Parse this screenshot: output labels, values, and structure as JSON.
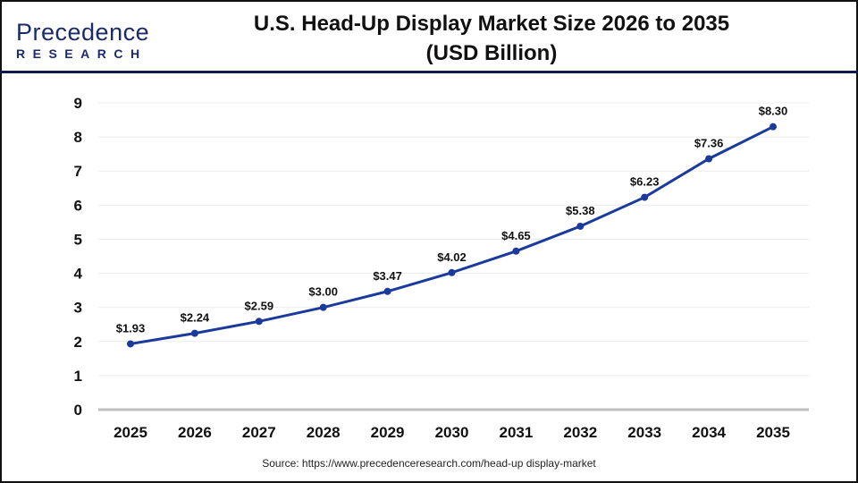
{
  "logo": {
    "line1": "Precedence",
    "line2": "RESEARCH"
  },
  "chart_data": {
    "type": "line",
    "title": "U.S. Head-Up Display Market Size 2026 to 2035",
    "subtitle": "(USD Billion)",
    "categories": [
      "2025",
      "2026",
      "2027",
      "2028",
      "2029",
      "2030",
      "2031",
      "2032",
      "2033",
      "2034",
      "2035"
    ],
    "series": [
      {
        "name": "Market Size",
        "values": [
          1.93,
          2.24,
          2.59,
          3.0,
          3.47,
          4.02,
          4.65,
          5.38,
          6.23,
          7.36,
          8.3
        ],
        "labels": [
          "$1.93",
          "$2.24",
          "$2.59",
          "$3.00",
          "$3.47",
          "$4.02",
          "$4.65",
          "$5.38",
          "$6.23",
          "$7.36",
          "$8.30"
        ]
      }
    ],
    "ylim": [
      0,
      9
    ],
    "yticks": [
      "0",
      "1",
      "2",
      "3",
      "4",
      "5",
      "6",
      "7",
      "8",
      "9"
    ],
    "grid": true,
    "color": "#1a3a9c"
  },
  "source": "Source: https://www.precedenceresearch.com/head-up display-market"
}
